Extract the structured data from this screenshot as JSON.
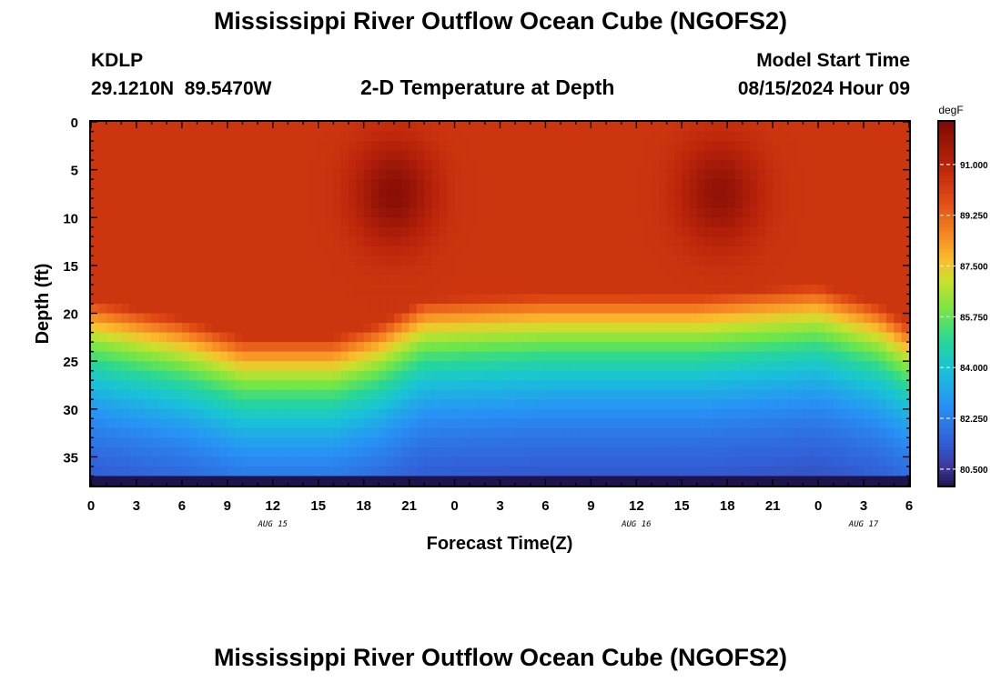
{
  "header": {
    "title": "Mississippi River Outflow Ocean Cube (NGOFS2)",
    "station_id": "KDLP",
    "station_coords": "29.1210N  89.5470W",
    "chart_title": "2-D Temperature at Depth",
    "model_label": "Model Start Time",
    "model_time": "08/15/2024 Hour 09"
  },
  "footer": {
    "title": "Mississippi River Outflow Ocean Cube (NGOFS2)"
  },
  "chart_data": {
    "type": "heatmap",
    "title": "2-D Temperature at Depth",
    "xlabel": "Forecast Time(Z)",
    "ylabel": "Depth (ft)",
    "x_tick_labels": [
      "0",
      "3",
      "6",
      "9",
      "12",
      "15",
      "18",
      "21",
      "0",
      "3",
      "6",
      "9",
      "12",
      "15",
      "18",
      "21",
      "0",
      "3",
      "6"
    ],
    "x_range_hours": [
      0,
      54
    ],
    "date_labels": [
      {
        "hour": 12,
        "label": "AUG 15"
      },
      {
        "hour": 36,
        "label": "AUG 16"
      },
      {
        "hour": 51,
        "label": "AUG 17"
      }
    ],
    "y_ticks": [
      0,
      5,
      10,
      15,
      20,
      25,
      30,
      35
    ],
    "ylim": [
      0,
      38
    ],
    "colorbar": {
      "unit": "degF",
      "ticks": [
        "91.000",
        "89.250",
        "87.500",
        "85.750",
        "84.000",
        "82.250",
        "80.500"
      ],
      "range": [
        79.9,
        92.5
      ]
    },
    "features": {
      "warm_cores": [
        {
          "hour": 20,
          "depth": 7.5,
          "value": 92.2
        },
        {
          "hour": 41.5,
          "depth": 7.5,
          "value": 92.0
        }
      ],
      "thermocline_depth_by_hour": [
        [
          0,
          18.5
        ],
        [
          6,
          20.5
        ],
        [
          10,
          22.5
        ],
        [
          16,
          22.5
        ],
        [
          19,
          21
        ],
        [
          22,
          18.5
        ],
        [
          30,
          18
        ],
        [
          40,
          18
        ],
        [
          48,
          17
        ],
        [
          52,
          19
        ],
        [
          54,
          21
        ]
      ],
      "surface_temp": 90.4,
      "bottom_temp": 80.0
    }
  }
}
